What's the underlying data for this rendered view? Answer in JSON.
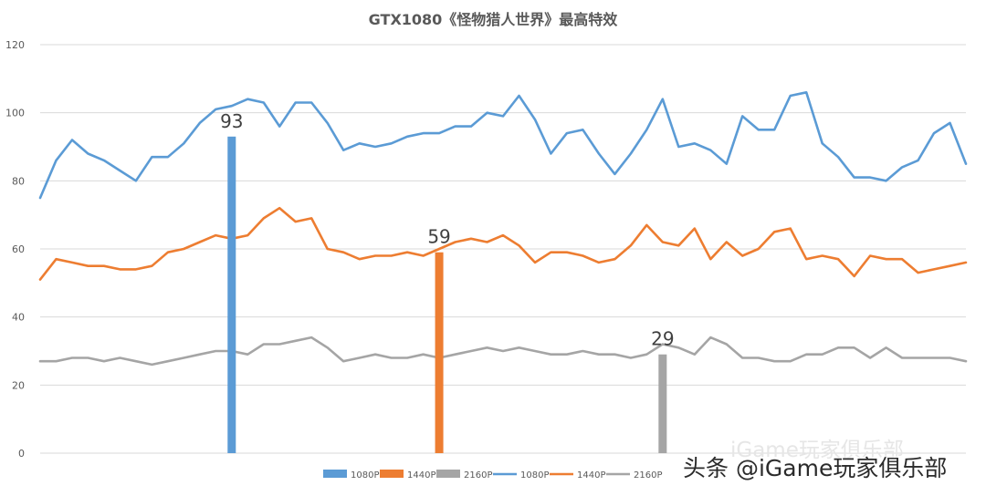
{
  "watermarks": {
    "faint": "iGame玩家俱乐部",
    "main": "头条 @iGame玩家俱乐部"
  },
  "chart_data": {
    "type": "line",
    "title": "GTX1080《怪物猎人世界》最高特效",
    "xlabel": "",
    "ylabel": "",
    "ylim": [
      0,
      120
    ],
    "yticks": [
      0,
      20,
      40,
      60,
      80,
      100,
      120
    ],
    "grid": true,
    "legend_position": "bottom",
    "series": [
      {
        "name": "1080P",
        "kind": "line",
        "color": "#5b9bd5",
        "values": [
          75,
          86,
          92,
          88,
          86,
          83,
          80,
          87,
          87,
          91,
          97,
          101,
          102,
          104,
          103,
          96,
          103,
          103,
          97,
          89,
          91,
          90,
          91,
          93,
          94,
          94,
          96,
          96,
          100,
          99,
          105,
          98,
          88,
          94,
          95,
          88,
          82,
          88,
          95,
          104,
          90,
          91,
          89,
          85,
          99,
          95,
          95,
          105,
          106,
          91,
          87,
          81,
          81,
          80,
          84,
          86,
          94,
          97,
          85
        ]
      },
      {
        "name": "1440P",
        "kind": "line",
        "color": "#ed7d31",
        "values": [
          51,
          57,
          56,
          55,
          55,
          54,
          54,
          55,
          59,
          60,
          62,
          64,
          63,
          64,
          69,
          72,
          68,
          69,
          60,
          59,
          57,
          58,
          58,
          59,
          58,
          60,
          62,
          63,
          62,
          64,
          61,
          56,
          59,
          59,
          58,
          56,
          57,
          61,
          67,
          62,
          61,
          66,
          57,
          62,
          58,
          60,
          65,
          66,
          57,
          58,
          57,
          52,
          58,
          57,
          57,
          53,
          54,
          55,
          56
        ]
      },
      {
        "name": "2160P",
        "kind": "line",
        "color": "#a5a5a5",
        "values": [
          27,
          27,
          28,
          28,
          27,
          28,
          27,
          26,
          27,
          28,
          29,
          30,
          30,
          29,
          32,
          32,
          33,
          34,
          31,
          27,
          28,
          29,
          28,
          28,
          29,
          28,
          29,
          30,
          31,
          30,
          31,
          30,
          29,
          29,
          30,
          29,
          29,
          28,
          29,
          32,
          31,
          29,
          34,
          32,
          28,
          28,
          27,
          27,
          29,
          29,
          31,
          31,
          28,
          31,
          28,
          28,
          28,
          28,
          27
        ]
      },
      {
        "name": "1080P",
        "kind": "bar",
        "color": "#5b9bd5",
        "value": 93,
        "label": "93",
        "position": 12
      },
      {
        "name": "1440P",
        "kind": "bar",
        "color": "#ed7d31",
        "value": 59,
        "label": "59",
        "position": 25
      },
      {
        "name": "2160P",
        "kind": "bar",
        "color": "#a5a5a5",
        "value": 29,
        "label": "29",
        "position": 39
      }
    ],
    "legend": [
      {
        "label": "1080P",
        "kind": "bar",
        "color": "#5b9bd5"
      },
      {
        "label": "1440P",
        "kind": "bar",
        "color": "#ed7d31"
      },
      {
        "label": "2160P",
        "kind": "bar",
        "color": "#a5a5a5"
      },
      {
        "label": "1080P",
        "kind": "line",
        "color": "#5b9bd5"
      },
      {
        "label": "1440P",
        "kind": "line",
        "color": "#ed7d31"
      },
      {
        "label": "2160P",
        "kind": "line",
        "color": "#a5a5a5"
      }
    ],
    "colors": {
      "gridline": "#d9d9d9",
      "tick_text": "#595959",
      "title_text": "#595959",
      "label_text": "#404040"
    }
  }
}
